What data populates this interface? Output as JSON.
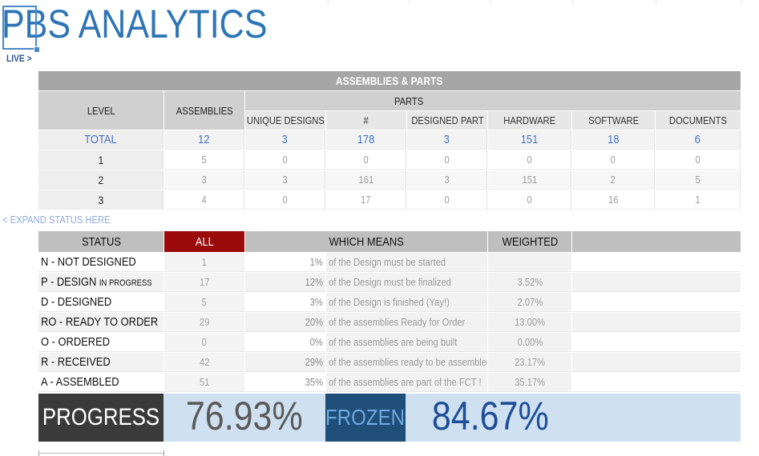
{
  "header": {
    "title": "PBS ANALYTICS",
    "live_link": "LIVE  >"
  },
  "assemblies": {
    "band_title": "ASSEMBLIES & PARTS",
    "level_header": "LEVEL",
    "assemblies_header": "ASSEMBLIES",
    "parts_header": "PARTS",
    "columns": [
      "UNIQUE DESIGNS",
      "#",
      "DESIGNED PART",
      "HARDWARE",
      "SOFTWARE",
      "DOCUMENTS"
    ],
    "total_row": {
      "label": "TOTAL",
      "values": [
        "12",
        "3",
        "178",
        "3",
        "151",
        "18",
        "6"
      ]
    },
    "rows": [
      {
        "label": "1",
        "values": [
          "5",
          "0",
          "0",
          "0",
          "0",
          "0",
          "0"
        ]
      },
      {
        "label": "2",
        "values": [
          "3",
          "3",
          "161",
          "3",
          "151",
          "2",
          "5"
        ]
      },
      {
        "label": "3",
        "values": [
          "4",
          "0",
          "17",
          "0",
          "0",
          "16",
          "1"
        ]
      }
    ]
  },
  "expand_link": "< EXPAND STATUS HERE",
  "status": {
    "headers": {
      "status": "STATUS",
      "all": "ALL",
      "which_means": "WHICH MEANS",
      "weighted": "WEIGHTED"
    },
    "rows": [
      {
        "label": "N - NOT DESIGNED",
        "label_small": "",
        "count": "1",
        "pct": "1%",
        "meaning": "of the Design must be started",
        "weighted": ""
      },
      {
        "label": "P - DESIGN ",
        "label_small": "IN PROGRESS",
        "count": "17",
        "pct": "12%",
        "meaning": "of the Design must be finalized",
        "weighted": "3.52%"
      },
      {
        "label": "D - DESIGNED",
        "label_small": "",
        "count": "5",
        "pct": "3%",
        "meaning": "of the Design is finished (Yay!)",
        "weighted": "2.07%"
      },
      {
        "label": "RO - READY TO ORDER",
        "label_small": "",
        "count": "29",
        "pct": "20%",
        "meaning": "of the assemblies Ready for Order",
        "weighted": "13.00%"
      },
      {
        "label": "O - ORDERED",
        "label_small": "",
        "count": "0",
        "pct": "0%",
        "meaning": "of the assemblies are being built",
        "weighted": "0.00%"
      },
      {
        "label": "R - RECEIVED",
        "label_small": "",
        "count": "42",
        "pct": "29%",
        "meaning": "of the assemblies ready to be assembled",
        "weighted": "23.17%"
      },
      {
        "label": "A - ASSEMBLED",
        "label_small": "",
        "count": "51",
        "pct": "35%",
        "meaning": "of the assemblies are part of the FCT !",
        "weighted": "35.17%"
      }
    ]
  },
  "summary": {
    "progress_label": "PROGRESS",
    "progress_value": "76.93%",
    "frozen_label": "FROZEN",
    "frozen_value": "84.67%"
  },
  "colors": {
    "accent": "#2e75b6",
    "all_header": "#9b0b0b",
    "progress_bg": "#3a3a3a",
    "frozen_bg": "#1f4e79",
    "summary_bg": "#cfe0f1"
  }
}
